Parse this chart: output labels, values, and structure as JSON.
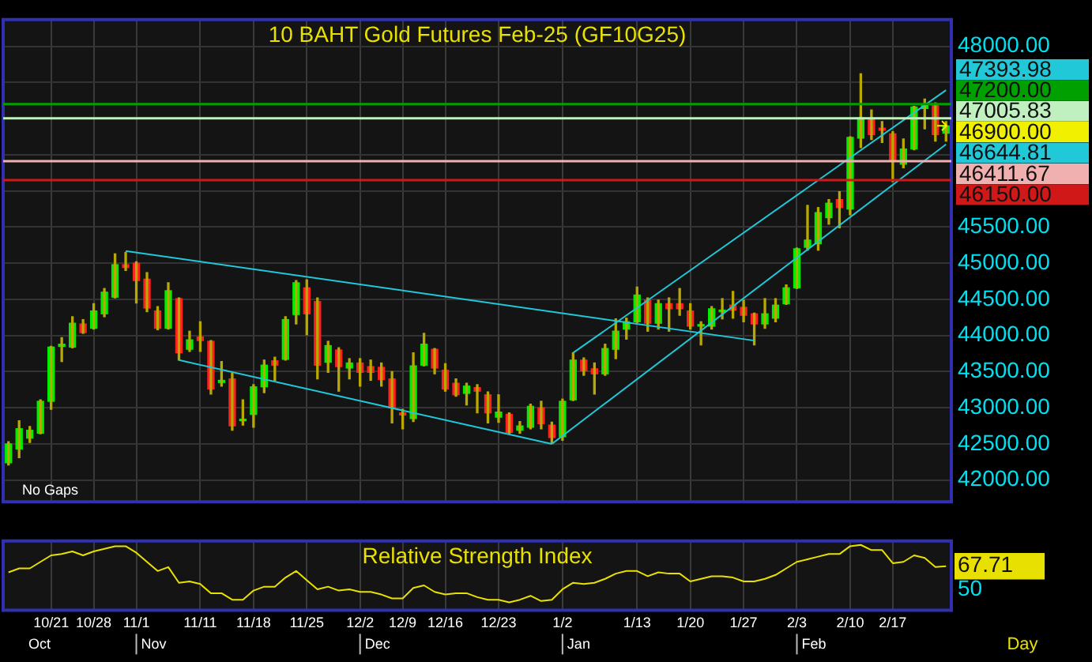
{
  "chart_data": [
    {
      "type": "candlestick",
      "title": "10 BAHT Gold Futures Feb-25 (GF10G25)",
      "categories": [
        null,
        null,
        null,
        null,
        null,
        null,
        null,
        null,
        null,
        null,
        null,
        null,
        null,
        null,
        null,
        null,
        null,
        null,
        null,
        null,
        null,
        null,
        null,
        null,
        null,
        null,
        null,
        null,
        null,
        null,
        null,
        null,
        null,
        null,
        null,
        null,
        null,
        null,
        null,
        null,
        null,
        null,
        null,
        null,
        null,
        null,
        null,
        null,
        null,
        null,
        null,
        null,
        null,
        null,
        null,
        null,
        null,
        null,
        null,
        null,
        null,
        null,
        null,
        null,
        null,
        null,
        null,
        null,
        null,
        null,
        null,
        null,
        null,
        null,
        null,
        null,
        null,
        null,
        null,
        null,
        null,
        null,
        null,
        null,
        null,
        null,
        null,
        null,
        null
      ],
      "ohlc": [
        [
          42240,
          42530,
          42210,
          42500
        ],
        [
          42430,
          42820,
          42310,
          42710
        ],
        [
          42580,
          42740,
          42520,
          42690
        ],
        [
          42650,
          43110,
          42640,
          43090
        ],
        [
          43090,
          43850,
          42980,
          43840
        ],
        [
          43850,
          43970,
          43640,
          43880
        ],
        [
          43840,
          44260,
          43830,
          44170
        ],
        [
          44160,
          44220,
          44030,
          44040
        ],
        [
          44100,
          44440,
          44090,
          44340
        ],
        [
          44300,
          44650,
          44260,
          44600
        ],
        [
          44530,
          45130,
          44520,
          44980
        ],
        [
          44980,
          45150,
          44900,
          44940
        ],
        [
          45000,
          45020,
          44450,
          44760
        ],
        [
          44780,
          44870,
          44330,
          44380
        ],
        [
          44340,
          44400,
          44080,
          44100
        ],
        [
          44100,
          44730,
          44090,
          44620
        ],
        [
          44510,
          44520,
          43660,
          43760
        ],
        [
          43810,
          44060,
          43780,
          43940
        ],
        [
          43980,
          44190,
          43780,
          43930
        ],
        [
          43920,
          43930,
          43190,
          43260
        ],
        [
          43350,
          43640,
          43300,
          43380
        ],
        [
          43400,
          43480,
          42690,
          42750
        ],
        [
          42820,
          43110,
          42760,
          42830
        ],
        [
          42910,
          43320,
          42730,
          43290
        ],
        [
          43290,
          43660,
          43210,
          43590
        ],
        [
          43650,
          43700,
          43380,
          43590
        ],
        [
          43670,
          44260,
          43660,
          44220
        ],
        [
          44290,
          44760,
          44160,
          44730
        ],
        [
          44660,
          44770,
          44010,
          44300
        ],
        [
          44470,
          44520,
          43400,
          43590
        ],
        [
          43630,
          43920,
          43490,
          43860
        ],
        [
          43800,
          43830,
          43230,
          43570
        ],
        [
          43550,
          43680,
          43400,
          43620
        ],
        [
          43620,
          43680,
          43300,
          43490
        ],
        [
          43570,
          43660,
          43380,
          43490
        ],
        [
          43560,
          43620,
          43300,
          43390
        ],
        [
          43400,
          43500,
          42790,
          43000
        ],
        [
          42930,
          42980,
          42710,
          42900
        ],
        [
          42850,
          43760,
          42810,
          43580
        ],
        [
          43590,
          44030,
          43580,
          43880
        ],
        [
          43810,
          43820,
          43470,
          43550
        ],
        [
          43520,
          43610,
          43230,
          43260
        ],
        [
          43340,
          43400,
          43160,
          43180
        ],
        [
          43200,
          43340,
          43040,
          43300
        ],
        [
          43280,
          43320,
          42930,
          43230
        ],
        [
          43180,
          43220,
          42790,
          42930
        ],
        [
          42870,
          43180,
          42800,
          42940
        ],
        [
          42910,
          42930,
          42640,
          42660
        ],
        [
          42690,
          42810,
          42650,
          42750
        ],
        [
          42730,
          43050,
          42710,
          43020
        ],
        [
          43000,
          43090,
          42710,
          42780
        ],
        [
          42760,
          42800,
          42510,
          42590
        ],
        [
          42600,
          43120,
          42550,
          43090
        ],
        [
          43110,
          43760,
          43100,
          43660
        ],
        [
          43660,
          43690,
          43450,
          43510
        ],
        [
          43540,
          43620,
          43190,
          43470
        ],
        [
          43470,
          43880,
          43450,
          43820
        ],
        [
          43810,
          44230,
          43680,
          44060
        ],
        [
          44090,
          44240,
          43950,
          44190
        ],
        [
          44190,
          44670,
          44180,
          44560
        ],
        [
          44490,
          44520,
          44060,
          44170
        ],
        [
          44170,
          44490,
          44090,
          44440
        ],
        [
          44440,
          44520,
          44060,
          44370
        ],
        [
          44440,
          44650,
          44280,
          44370
        ],
        [
          44340,
          44440,
          44090,
          44130
        ],
        [
          44130,
          44190,
          43870,
          44140
        ],
        [
          44130,
          44400,
          44090,
          44370
        ],
        [
          44330,
          44510,
          44230,
          44350
        ],
        [
          44420,
          44610,
          44240,
          44350
        ],
        [
          44390,
          44490,
          44190,
          44280
        ],
        [
          44300,
          44310,
          43870,
          44160
        ],
        [
          44160,
          44510,
          44100,
          44300
        ],
        [
          44240,
          44510,
          44190,
          44420
        ],
        [
          44440,
          44700,
          44430,
          44660
        ],
        [
          44660,
          45210,
          44650,
          45200
        ],
        [
          45220,
          45800,
          45180,
          45320
        ],
        [
          45270,
          45770,
          45180,
          45700
        ],
        [
          45630,
          45880,
          45540,
          45830
        ],
        [
          45880,
          45990,
          45490,
          45770
        ],
        [
          45750,
          46750,
          45670,
          46740
        ],
        [
          46730,
          47620,
          46600,
          47010
        ],
        [
          47000,
          47120,
          46710,
          46780
        ],
        [
          46870,
          46960,
          46670,
          46840
        ],
        [
          46790,
          46820,
          46130,
          46410
        ],
        [
          46370,
          46720,
          46320,
          46580
        ],
        [
          46580,
          47170,
          46570,
          47160
        ],
        [
          47140,
          47270,
          46860,
          47200
        ],
        [
          47200,
          47220,
          46690,
          46780
        ],
        [
          46800,
          46960,
          46690,
          46900
        ]
      ],
      "colors": [
        "#00ee00",
        "#00ee00",
        "#00ee00",
        "#00ee00",
        "#00ee00",
        "#00ee00",
        "#00ee00",
        "#ff2020",
        "#00ee00",
        "#00ee00",
        "#00ee00",
        "#ff2020",
        "#ff2020",
        "#ff2020",
        "#ff2020",
        "#00ee00",
        "#ff2020",
        "#00ee00",
        "#ff2020",
        "#ff2020",
        "#00ee00",
        "#ff2020",
        "#00ee00",
        "#00ee00",
        "#00ee00",
        "#ff2020",
        "#00ee00",
        "#00ee00",
        "#ff2020",
        "#ff2020",
        "#00ee00",
        "#ff2020",
        "#00ee00",
        "#ff2020",
        "#ff2020",
        "#ff2020",
        "#ff2020",
        "#ff2020",
        "#00ee00",
        "#00ee00",
        "#ff2020",
        "#ff2020",
        "#ff2020",
        "#00ee00",
        "#ff2020",
        "#ff2020",
        "#00ee00",
        "#ff2020",
        "#00ee00",
        "#00ee00",
        "#ff2020",
        "#ff2020",
        "#00ee00",
        "#00ee00",
        "#ff2020",
        "#ff2020",
        "#00ee00",
        "#00ee00",
        "#00ee00",
        "#00ee00",
        "#ff2020",
        "#00ee00",
        "#ff2020",
        "#ff2020",
        "#ff2020",
        "#00ee00",
        "#00ee00",
        "#00ee00",
        "#ff2020",
        "#ff2020",
        "#ff2020",
        "#00ee00",
        "#00ee00",
        "#00ee00",
        "#00ee00",
        "#00ee00",
        "#00ee00",
        "#00ee00",
        "#ff2020",
        "#00ee00",
        "#00ee00",
        "#ff2020",
        "#ff2020",
        "#ff2020",
        "#00ee00",
        "#00ee00",
        "#00ee00",
        "#ff2020",
        "#00ee00"
      ],
      "series": [
        {
          "type": "line",
          "color": "#20c8d8",
          "values": [
            null,
            null,
            null,
            null,
            null,
            null,
            null,
            null,
            null,
            null,
            null,
            45170,
            null,
            null,
            null,
            null,
            null,
            null,
            null,
            null,
            null,
            null,
            null,
            null,
            null,
            null,
            null,
            null,
            null,
            null,
            null,
            null,
            null,
            null,
            null,
            null,
            null,
            null,
            null,
            null,
            null,
            null,
            null,
            null,
            null,
            null,
            null,
            null,
            null,
            null,
            null,
            null,
            null,
            null,
            null,
            null,
            null,
            null,
            null,
            null,
            null,
            null,
            null,
            null,
            null,
            null,
            null,
            null,
            null,
            null,
            43930,
            null,
            null,
            null,
            null,
            null,
            null,
            null,
            null,
            null,
            null,
            null,
            null,
            null,
            null,
            null,
            null,
            null,
            null
          ]
        },
        {
          "type": "line",
          "color": "#20c8d8",
          "values": [
            null,
            null,
            null,
            null,
            null,
            null,
            null,
            null,
            null,
            null,
            null,
            null,
            null,
            null,
            null,
            null,
            43660,
            null,
            null,
            null,
            null,
            null,
            null,
            null,
            null,
            null,
            null,
            null,
            null,
            null,
            null,
            null,
            null,
            null,
            null,
            null,
            null,
            null,
            null,
            null,
            null,
            null,
            null,
            null,
            null,
            null,
            null,
            null,
            null,
            null,
            null,
            42500,
            null,
            null,
            null,
            null,
            null,
            null,
            null,
            null,
            null,
            null,
            null,
            null,
            null,
            null,
            null,
            null,
            null,
            null,
            null,
            null,
            null,
            null,
            null,
            null,
            null,
            null,
            null,
            null,
            null,
            null,
            null,
            null,
            null,
            null,
            null,
            null,
            null
          ]
        },
        {
          "type": "line",
          "color": "#20c8d8",
          "values": [
            null,
            null,
            null,
            null,
            null,
            null,
            null,
            null,
            null,
            null,
            null,
            null,
            null,
            null,
            null,
            null,
            null,
            null,
            null,
            null,
            null,
            null,
            null,
            null,
            null,
            null,
            null,
            null,
            null,
            null,
            null,
            null,
            null,
            null,
            null,
            null,
            null,
            null,
            null,
            null,
            null,
            null,
            null,
            null,
            null,
            null,
            null,
            null,
            null,
            null,
            null,
            null,
            null,
            43760,
            null,
            null,
            null,
            null,
            null,
            null,
            null,
            null,
            null,
            null,
            null,
            null,
            null,
            null,
            null,
            null,
            null,
            null,
            null,
            null,
            null,
            null,
            null,
            null,
            null,
            null,
            null,
            null,
            null,
            null,
            null,
            null,
            null,
            null,
            47393.98
          ],
          "value_labels": [
            null,
            null,
            null,
            null,
            null,
            null,
            null,
            null,
            null,
            null,
            null,
            null,
            null,
            null,
            null,
            null,
            null,
            null,
            null,
            null,
            null,
            null,
            null,
            null,
            null,
            null,
            null,
            null,
            null,
            null,
            null,
            null,
            null,
            null,
            null,
            null,
            null,
            null,
            null,
            null,
            null,
            null,
            null,
            null,
            null,
            null,
            null,
            null,
            null,
            null,
            null,
            null,
            null,
            null,
            null,
            null,
            null,
            null,
            null,
            null,
            null,
            null,
            null,
            null,
            null,
            null,
            null,
            null,
            null,
            null,
            null,
            null,
            null,
            null,
            null,
            null,
            null,
            null,
            null,
            null,
            null,
            null,
            null,
            null,
            null,
            null,
            null,
            null,
            "47393.98"
          ]
        },
        {
          "type": "line",
          "color": "#20c8d8",
          "values": [
            null,
            null,
            null,
            null,
            null,
            null,
            null,
            null,
            null,
            null,
            null,
            null,
            null,
            null,
            null,
            null,
            null,
            null,
            null,
            null,
            null,
            null,
            null,
            null,
            null,
            null,
            null,
            null,
            null,
            null,
            null,
            null,
            null,
            null,
            null,
            null,
            null,
            null,
            null,
            null,
            null,
            null,
            null,
            null,
            null,
            null,
            null,
            null,
            null,
            null,
            null,
            42500,
            null,
            null,
            null,
            null,
            null,
            null,
            null,
            null,
            null,
            null,
            null,
            null,
            null,
            null,
            null,
            null,
            null,
            null,
            null,
            null,
            null,
            null,
            null,
            null,
            null,
            null,
            null,
            null,
            null,
            null,
            null,
            null,
            null,
            null,
            null,
            null,
            46644.81
          ],
          "value_labels": [
            null,
            null,
            null,
            null,
            null,
            null,
            null,
            null,
            null,
            null,
            null,
            null,
            null,
            null,
            null,
            null,
            null,
            null,
            null,
            null,
            null,
            null,
            null,
            null,
            null,
            null,
            null,
            null,
            null,
            null,
            null,
            null,
            null,
            null,
            null,
            null,
            null,
            null,
            null,
            null,
            null,
            null,
            null,
            null,
            null,
            null,
            null,
            null,
            null,
            null,
            null,
            null,
            null,
            null,
            null,
            null,
            null,
            null,
            null,
            null,
            null,
            null,
            null,
            null,
            null,
            null,
            null,
            null,
            null,
            null,
            null,
            null,
            null,
            null,
            null,
            null,
            null,
            null,
            null,
            null,
            null,
            null,
            null,
            null,
            null,
            null,
            null,
            null,
            "46644.81"
          ]
        }
      ],
      "ref_lines": [
        {
          "axis": "y",
          "value": 47200,
          "label": "47200.00",
          "color": "#00a000"
        },
        {
          "axis": "y",
          "value": 47005.83,
          "label": "47005.83",
          "color": "#c0f0c0"
        },
        {
          "axis": "y",
          "value": 46411.67,
          "label": "46411.67",
          "color": "#f0b0b0"
        },
        {
          "axis": "y",
          "value": 46150,
          "label": "46150.00",
          "color": "#d01818"
        }
      ],
      "value_labels": [
        null,
        null,
        null,
        null,
        null,
        null,
        null,
        null,
        null,
        null,
        null,
        null,
        null,
        null,
        null,
        null,
        null,
        null,
        null,
        null,
        null,
        null,
        null,
        null,
        null,
        null,
        null,
        null,
        null,
        null,
        null,
        null,
        null,
        null,
        null,
        null,
        null,
        null,
        null,
        null,
        null,
        null,
        null,
        null,
        null,
        null,
        null,
        null,
        null,
        null,
        null,
        null,
        null,
        null,
        null,
        null,
        null,
        null,
        null,
        null,
        null,
        null,
        null,
        null,
        null,
        null,
        null,
        null,
        null,
        null,
        null,
        null,
        null,
        null,
        null,
        null,
        null,
        null,
        null,
        null,
        null,
        null,
        null,
        null,
        null,
        null,
        null,
        null,
        "46900.00"
      ],
      "annotations": [
        "No Gaps"
      ],
      "ylim": [
        41700,
        48370
      ],
      "yticks": [
        {
          "value": 42000,
          "label": "42000.00"
        },
        {
          "value": 42500,
          "label": "42500.00"
        },
        {
          "value": 43000,
          "label": "43000.00"
        },
        {
          "value": 43500,
          "label": "43500.00"
        },
        {
          "value": 44000,
          "label": "44000.00"
        },
        {
          "value": 44500,
          "label": "44500.00"
        },
        {
          "value": 45000,
          "label": "45000.00"
        },
        {
          "value": 45500,
          "label": "45500.00"
        },
        {
          "value": 46000,
          "label": null
        },
        {
          "value": 46500,
          "label": null
        },
        {
          "value": 47000,
          "label": null
        },
        {
          "value": 47500,
          "label": null
        },
        {
          "value": 48000,
          "label": "48000.00"
        }
      ],
      "grid": true,
      "legend": false,
      "tick_labels": "y"
    },
    {
      "type": "line",
      "title": "Relative Strength Index",
      "xlabel": "Day",
      "categories": [
        null,
        null,
        null,
        null,
        "10/21",
        null,
        null,
        null,
        "10/28",
        null,
        null,
        null,
        "11/1",
        null,
        null,
        null,
        null,
        null,
        "11/11",
        null,
        null,
        null,
        null,
        "11/18",
        null,
        null,
        null,
        null,
        "11/25",
        null,
        null,
        null,
        null,
        "12/2",
        null,
        null,
        null,
        "12/9",
        null,
        null,
        null,
        "12/16",
        null,
        null,
        null,
        null,
        "12/23",
        null,
        null,
        null,
        null,
        null,
        "1/2",
        null,
        null,
        null,
        null,
        null,
        null,
        "1/13",
        null,
        null,
        null,
        null,
        "1/20",
        null,
        null,
        null,
        null,
        "1/27",
        null,
        null,
        null,
        null,
        "2/3",
        null,
        null,
        null,
        null,
        "2/10",
        null,
        null,
        null,
        "2/17",
        null,
        null,
        null,
        null,
        null
      ],
      "series": [
        {
          "color": "#e8e000",
          "values": [
            63,
            66,
            66,
            71,
            76,
            77,
            79,
            76,
            79,
            81,
            83,
            83,
            78,
            71,
            64,
            67,
            55,
            56,
            54,
            47,
            47,
            42,
            42,
            49,
            52,
            52,
            59,
            64,
            57,
            50,
            52,
            49,
            50,
            48,
            48,
            46,
            43,
            43,
            51,
            53,
            48,
            46,
            47,
            47,
            44,
            42,
            42,
            40,
            42,
            45,
            41,
            42,
            50,
            55,
            54,
            55,
            58,
            62,
            64,
            64,
            60,
            63,
            62,
            62,
            56,
            58,
            60,
            60,
            59,
            56,
            56,
            58,
            61,
            66,
            71,
            73,
            75,
            77,
            77,
            83,
            84,
            80,
            80,
            70,
            71,
            76,
            74,
            67,
            67.71
          ]
        }
      ],
      "annotations": [
        "Oct",
        "Nov",
        "Dec",
        "Jan",
        "Feb"
      ],
      "ylim": [
        34,
        87
      ],
      "yticks": [
        50,
        {
          "value": 67.71,
          "label": "67.71"
        }
      ],
      "grid": "x",
      "legend": false,
      "marker": "none",
      "line_style": "solid"
    }
  ]
}
